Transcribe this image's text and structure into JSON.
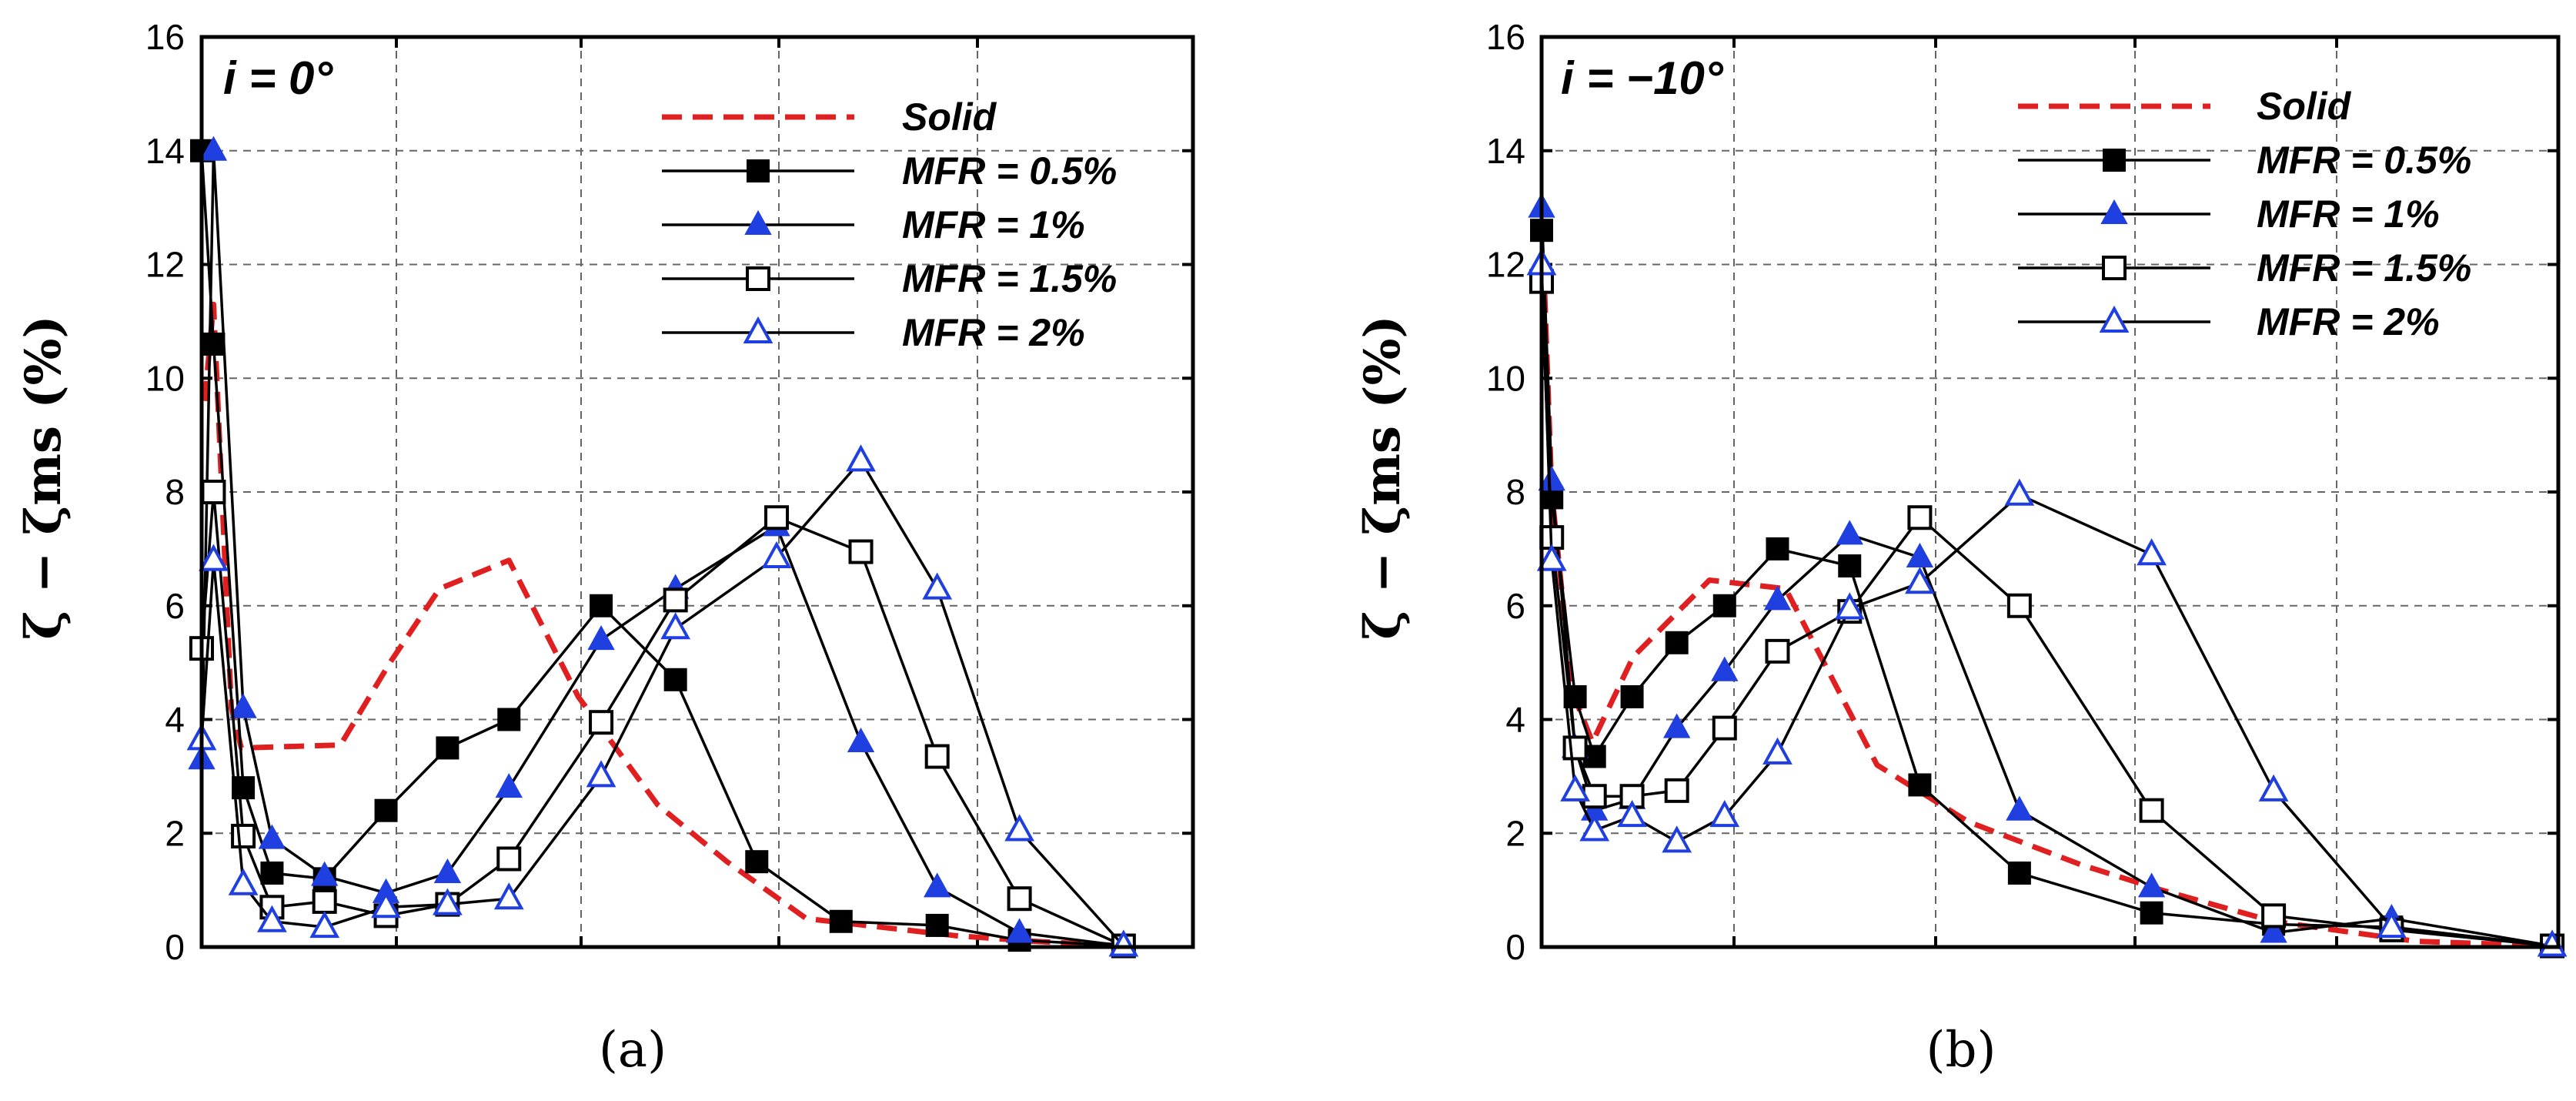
{
  "chart_data": [
    {
      "type": "line",
      "panel_label": "(a)",
      "annotation": "i = 0°",
      "ylabel": "ζ − ζms (%)",
      "ylim": [
        0,
        16
      ],
      "yticks": [
        0,
        2,
        4,
        6,
        8,
        10,
        12,
        14,
        16
      ],
      "xlim": [
        0,
        1
      ],
      "x_tick_labels": [],
      "grid": true,
      "legend_position": "top-right",
      "series": [
        {
          "name": "Solid",
          "style": "dashed",
          "color": "#e02020",
          "marker": "none",
          "points": [
            [
              0.003,
              9.6
            ],
            [
              0.012,
              11.3
            ],
            [
              0.03,
              4.2
            ],
            [
              0.04,
              3.5
            ],
            [
              0.14,
              3.55
            ],
            [
              0.19,
              5.0
            ],
            [
              0.24,
              6.3
            ],
            [
              0.31,
              6.8
            ],
            [
              0.38,
              4.4
            ],
            [
              0.46,
              2.5
            ],
            [
              0.53,
              1.5
            ],
            [
              0.61,
              0.5
            ],
            [
              0.76,
              0.2
            ],
            [
              0.84,
              0.1
            ],
            [
              0.93,
              0.02
            ]
          ]
        },
        {
          "name": "MFR = 0.5%",
          "style": "solid",
          "color": "#000000",
          "marker": "filled-square",
          "points": [
            [
              0.0,
              14.0
            ],
            [
              0.012,
              10.6
            ],
            [
              0.042,
              2.8
            ],
            [
              0.071,
              1.3
            ],
            [
              0.124,
              1.2
            ],
            [
              0.186,
              2.4
            ],
            [
              0.248,
              3.5
            ],
            [
              0.31,
              4.0
            ],
            [
              0.403,
              6.0
            ],
            [
              0.478,
              4.7
            ],
            [
              0.56,
              1.5
            ],
            [
              0.645,
              0.45
            ],
            [
              0.742,
              0.38
            ],
            [
              0.825,
              0.12
            ],
            [
              0.93,
              0.02
            ]
          ]
        },
        {
          "name": "MFR = 1%",
          "style": "solid",
          "color": "#1f3fe0",
          "marker": "filled-triangle",
          "points": [
            [
              0.0,
              3.3
            ],
            [
              0.012,
              14.0
            ],
            [
              0.042,
              4.2
            ],
            [
              0.071,
              1.9
            ],
            [
              0.124,
              1.25
            ],
            [
              0.186,
              0.95
            ],
            [
              0.248,
              1.3
            ],
            [
              0.31,
              2.8
            ],
            [
              0.403,
              5.4
            ],
            [
              0.478,
              6.3
            ],
            [
              0.58,
              7.4
            ],
            [
              0.665,
              3.6
            ],
            [
              0.742,
              1.05
            ],
            [
              0.825,
              0.25
            ],
            [
              0.93,
              0.02
            ]
          ]
        },
        {
          "name": "MFR = 1.5%",
          "style": "solid",
          "color": "#000000",
          "marker": "open-square",
          "points": [
            [
              0.0,
              5.25
            ],
            [
              0.012,
              8.0
            ],
            [
              0.042,
              1.95
            ],
            [
              0.071,
              0.7
            ],
            [
              0.124,
              0.8
            ],
            [
              0.186,
              0.55
            ],
            [
              0.248,
              0.75
            ],
            [
              0.31,
              1.55
            ],
            [
              0.403,
              3.95
            ],
            [
              0.478,
              6.1
            ],
            [
              0.58,
              7.55
            ],
            [
              0.665,
              6.95
            ],
            [
              0.742,
              3.35
            ],
            [
              0.825,
              0.85
            ],
            [
              0.93,
              0.02
            ]
          ]
        },
        {
          "name": "MFR = 2%",
          "style": "solid",
          "color": "#1f3fe0",
          "marker": "open-triangle",
          "points": [
            [
              0.0,
              3.65
            ],
            [
              0.012,
              6.8
            ],
            [
              0.042,
              1.1
            ],
            [
              0.071,
              0.45
            ],
            [
              0.124,
              0.35
            ],
            [
              0.186,
              0.7
            ],
            [
              0.248,
              0.75
            ],
            [
              0.31,
              0.85
            ],
            [
              0.403,
              3.0
            ],
            [
              0.478,
              5.6
            ],
            [
              0.58,
              6.85
            ],
            [
              0.665,
              8.55
            ],
            [
              0.742,
              6.3
            ],
            [
              0.825,
              2.05
            ],
            [
              0.93,
              0.02
            ]
          ]
        }
      ]
    },
    {
      "type": "line",
      "panel_label": "(b)",
      "annotation": "i = −10°",
      "ylabel": "ζ − ζms (%)",
      "ylim": [
        0,
        16
      ],
      "yticks": [
        0,
        2,
        4,
        6,
        8,
        10,
        12,
        14,
        16
      ],
      "xlim": [
        0,
        1
      ],
      "x_tick_labels": [],
      "grid": true,
      "legend_position": "top-right",
      "series": [
        {
          "name": "Solid",
          "style": "dashed",
          "color": "#e02020",
          "marker": "none",
          "points": [
            [
              0.003,
              11.5
            ],
            [
              0.01,
              8.0
            ],
            [
              0.03,
              4.5
            ],
            [
              0.05,
              3.6
            ],
            [
              0.09,
              5.1
            ],
            [
              0.165,
              6.45
            ],
            [
              0.24,
              6.3
            ],
            [
              0.33,
              3.2
            ],
            [
              0.42,
              2.2
            ],
            [
              0.53,
              1.45
            ],
            [
              0.61,
              1.0
            ],
            [
              0.72,
              0.45
            ],
            [
              0.86,
              0.1
            ],
            [
              0.99,
              0.02
            ]
          ]
        },
        {
          "name": "MFR = 0.5%",
          "style": "solid",
          "color": "#000000",
          "marker": "filled-square",
          "points": [
            [
              0.0,
              12.6
            ],
            [
              0.01,
              7.9
            ],
            [
              0.033,
              4.4
            ],
            [
              0.052,
              3.35
            ],
            [
              0.089,
              4.4
            ],
            [
              0.133,
              5.35
            ],
            [
              0.18,
              6.0
            ],
            [
              0.232,
              7.0
            ],
            [
              0.303,
              6.7
            ],
            [
              0.372,
              2.85
            ],
            [
              0.47,
              1.3
            ],
            [
              0.6,
              0.6
            ],
            [
              0.72,
              0.4
            ],
            [
              0.836,
              0.35
            ],
            [
              0.994,
              0.02
            ]
          ]
        },
        {
          "name": "MFR = 1%",
          "style": "solid",
          "color": "#1f3fe0",
          "marker": "filled-triangle",
          "points": [
            [
              0.0,
              13.0
            ],
            [
              0.01,
              8.2
            ],
            [
              0.033,
              3.5
            ],
            [
              0.052,
              2.4
            ],
            [
              0.089,
              2.6
            ],
            [
              0.133,
              3.85
            ],
            [
              0.18,
              4.85
            ],
            [
              0.232,
              6.1
            ],
            [
              0.303,
              7.25
            ],
            [
              0.372,
              6.85
            ],
            [
              0.47,
              2.4
            ],
            [
              0.6,
              1.05
            ],
            [
              0.72,
              0.25
            ],
            [
              0.836,
              0.5
            ],
            [
              0.994,
              0.02
            ]
          ]
        },
        {
          "name": "MFR = 1.5%",
          "style": "solid",
          "color": "#000000",
          "marker": "open-square",
          "points": [
            [
              0.0,
              11.7
            ],
            [
              0.01,
              7.2
            ],
            [
              0.033,
              3.5
            ],
            [
              0.052,
              2.65
            ],
            [
              0.089,
              2.65
            ],
            [
              0.133,
              2.75
            ],
            [
              0.18,
              3.85
            ],
            [
              0.232,
              5.2
            ],
            [
              0.303,
              5.9
            ],
            [
              0.372,
              7.55
            ],
            [
              0.47,
              6.0
            ],
            [
              0.6,
              2.4
            ],
            [
              0.72,
              0.55
            ],
            [
              0.836,
              0.3
            ],
            [
              0.994,
              0.02
            ]
          ]
        },
        {
          "name": "MFR = 2%",
          "style": "solid",
          "color": "#1f3fe0",
          "marker": "open-triangle",
          "points": [
            [
              0.0,
              12.0
            ],
            [
              0.01,
              6.8
            ],
            [
              0.033,
              2.75
            ],
            [
              0.052,
              2.05
            ],
            [
              0.089,
              2.3
            ],
            [
              0.133,
              1.85
            ],
            [
              0.18,
              2.3
            ],
            [
              0.232,
              3.4
            ],
            [
              0.303,
              5.95
            ],
            [
              0.372,
              6.4
            ],
            [
              0.47,
              7.95
            ],
            [
              0.6,
              6.9
            ],
            [
              0.72,
              2.75
            ],
            [
              0.836,
              0.35
            ],
            [
              0.994,
              0.02
            ]
          ]
        }
      ]
    }
  ]
}
